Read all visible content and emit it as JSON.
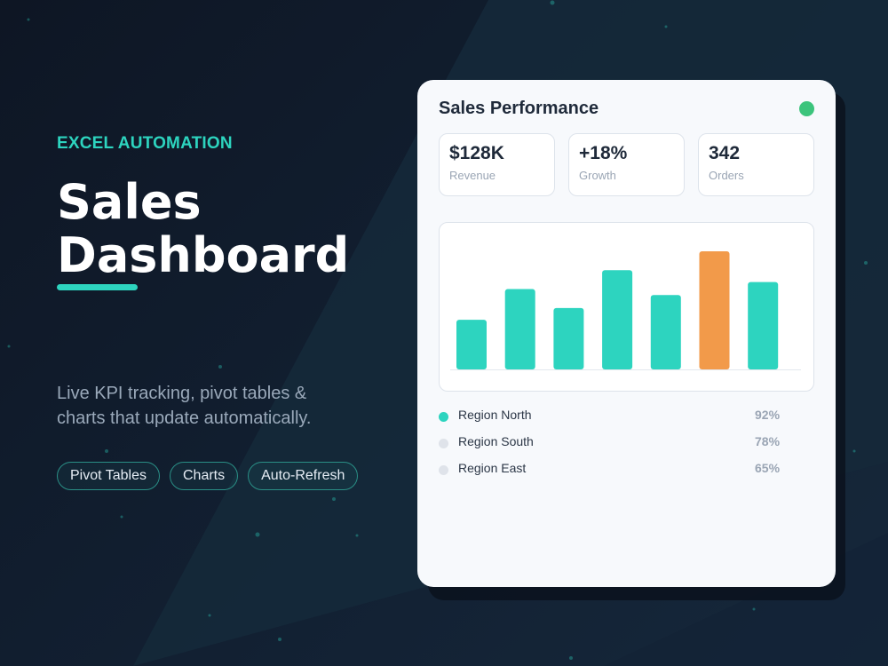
{
  "hero": {
    "eyebrow": "EXCEL AUTOMATION",
    "title_line1": "Sales",
    "title_line2": "Dashboard",
    "description_line1": "Live KPI tracking, pivot tables &",
    "description_line2": "charts that update automatically.",
    "chips": [
      "Pivot Tables",
      "Charts",
      "Auto-Refresh"
    ]
  },
  "card": {
    "title": "Sales Performance",
    "status_color": "#3cc47c",
    "kpis": [
      {
        "value": "$128K",
        "label": "Revenue"
      },
      {
        "value": "+18%",
        "label": "Growth"
      },
      {
        "value": "342",
        "label": "Orders"
      }
    ],
    "legend": [
      {
        "name": "Region North",
        "pct": "92%",
        "color": "#2dd4bf"
      },
      {
        "name": "Region South",
        "pct": "78%",
        "color": "#dfe3ea"
      },
      {
        "name": "Region East",
        "pct": "65%",
        "color": "#dfe3ea"
      }
    ]
  },
  "chart_data": {
    "type": "bar",
    "categories": [
      "",
      "",
      "",
      "",
      "",
      "",
      ""
    ],
    "values": [
      42,
      68,
      52,
      84,
      63,
      100,
      74
    ],
    "ylim": [
      0,
      100
    ],
    "colors": [
      "#2dd4bf",
      "#2dd4bf",
      "#2dd4bf",
      "#2dd4bf",
      "#2dd4bf",
      "#f29a4a",
      "#2dd4bf"
    ],
    "grid": false,
    "title": "",
    "xlabel": "",
    "ylabel": ""
  },
  "colors": {
    "accent": "#2dd4bf",
    "highlight": "#f29a4a",
    "background": "#0e1624",
    "card": "#f7f9fc"
  }
}
